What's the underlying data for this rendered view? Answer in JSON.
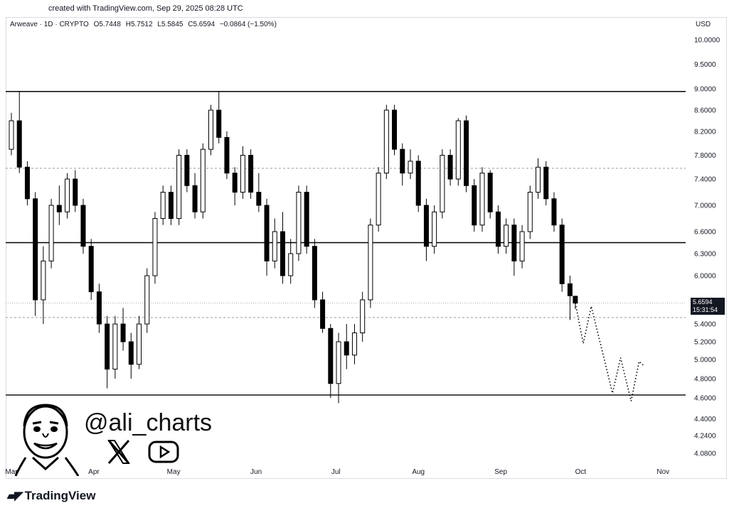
{
  "header": {
    "note": "created with TradingView.com, Sep 29, 2025 08:28 UTC"
  },
  "legend": {
    "symbol": "Arweave · 1D · CRYPTO",
    "open": "O5.7448",
    "high": "H5.7512",
    "low": "L5.5845",
    "close": "C5.6594",
    "change": "−0.0864 (−1.50%)"
  },
  "currency": "USD",
  "price_tag": {
    "price": "5.6594",
    "countdown": "15:31:54"
  },
  "overlay": {
    "handle": "@ali_charts",
    "x_icon": "x-logo-icon",
    "youtube_icon": "youtube-icon"
  },
  "brand": {
    "name": "TradingView"
  },
  "colors": {
    "up": "#ffffff",
    "down": "#000000",
    "line": "#000000",
    "grid": "#9a9a9a"
  },
  "chart_data": {
    "type": "candlestick",
    "y_ticks": [
      "10.0000",
      "9.5000",
      "9.0000",
      "8.6000",
      "8.2000",
      "7.8000",
      "7.4000",
      "7.0000",
      "6.6000",
      "6.3000",
      "6.0000",
      "5.4000",
      "5.2000",
      "5.0000",
      "4.8000",
      "4.6000",
      "4.4000",
      "4.2400",
      "4.0800"
    ],
    "x_ticks": [
      "Mar",
      "Apr",
      "May",
      "Jun",
      "Jul",
      "Aug",
      "Sep",
      "Oct",
      "Nov"
    ],
    "horizontal_lines": [
      {
        "price": 8.95,
        "style": "solid"
      },
      {
        "price": 7.58,
        "style": "dashed"
      },
      {
        "price": 6.45,
        "style": "solid"
      },
      {
        "price": 5.48,
        "style": "dashed"
      },
      {
        "price": 4.63,
        "style": "solid"
      }
    ],
    "close_line": {
      "price": 5.66,
      "style": "dotted"
    },
    "projection": [
      {
        "date": "2025-09-29",
        "price": 5.66
      },
      {
        "date": "2025-10-02",
        "price": 5.18
      },
      {
        "date": "2025-10-05",
        "price": 5.62
      },
      {
        "date": "2025-10-13",
        "price": 4.65
      },
      {
        "date": "2025-10-16",
        "price": 5.02
      },
      {
        "date": "2025-10-20",
        "price": 4.57
      },
      {
        "date": "2025-10-23",
        "price": 4.98
      },
      {
        "date": "2025-10-25",
        "price": 4.93
      }
    ],
    "candles": [
      {
        "date": "2025-03-01",
        "o": 7.9,
        "h": 8.55,
        "l": 7.8,
        "c": 8.4
      },
      {
        "date": "2025-03-04",
        "o": 8.4,
        "h": 8.95,
        "l": 7.5,
        "c": 7.6
      },
      {
        "date": "2025-03-07",
        "o": 7.6,
        "h": 7.7,
        "l": 7.0,
        "c": 7.1
      },
      {
        "date": "2025-03-10",
        "o": 7.1,
        "h": 7.2,
        "l": 5.5,
        "c": 5.7
      },
      {
        "date": "2025-03-13",
        "o": 5.7,
        "h": 6.4,
        "l": 5.4,
        "c": 6.2
      },
      {
        "date": "2025-03-16",
        "o": 6.2,
        "h": 7.1,
        "l": 6.1,
        "c": 7.0
      },
      {
        "date": "2025-03-19",
        "o": 7.0,
        "h": 7.3,
        "l": 6.7,
        "c": 6.9
      },
      {
        "date": "2025-03-22",
        "o": 6.9,
        "h": 7.5,
        "l": 6.8,
        "c": 7.4
      },
      {
        "date": "2025-03-25",
        "o": 7.4,
        "h": 7.55,
        "l": 6.9,
        "c": 7.0
      },
      {
        "date": "2025-03-28",
        "o": 7.0,
        "h": 7.1,
        "l": 6.3,
        "c": 6.4
      },
      {
        "date": "2025-03-31",
        "o": 6.4,
        "h": 6.5,
        "l": 5.7,
        "c": 5.8
      },
      {
        "date": "2025-04-03",
        "o": 5.8,
        "h": 5.9,
        "l": 5.3,
        "c": 5.4
      },
      {
        "date": "2025-04-06",
        "o": 5.4,
        "h": 5.5,
        "l": 4.7,
        "c": 4.9
      },
      {
        "date": "2025-04-09",
        "o": 4.9,
        "h": 5.5,
        "l": 4.8,
        "c": 5.4
      },
      {
        "date": "2025-04-12",
        "o": 5.4,
        "h": 5.6,
        "l": 5.1,
        "c": 5.2
      },
      {
        "date": "2025-04-15",
        "o": 5.2,
        "h": 5.3,
        "l": 4.8,
        "c": 4.95
      },
      {
        "date": "2025-04-18",
        "o": 4.95,
        "h": 5.5,
        "l": 4.9,
        "c": 5.4
      },
      {
        "date": "2025-04-21",
        "o": 5.4,
        "h": 6.1,
        "l": 5.3,
        "c": 6.0
      },
      {
        "date": "2025-04-24",
        "o": 6.0,
        "h": 6.9,
        "l": 5.9,
        "c": 6.8
      },
      {
        "date": "2025-04-27",
        "o": 6.8,
        "h": 7.3,
        "l": 6.7,
        "c": 7.2
      },
      {
        "date": "2025-04-30",
        "o": 7.2,
        "h": 7.3,
        "l": 6.7,
        "c": 6.8
      },
      {
        "date": "2025-05-03",
        "o": 6.8,
        "h": 7.9,
        "l": 6.7,
        "c": 7.8
      },
      {
        "date": "2025-05-06",
        "o": 7.8,
        "h": 7.9,
        "l": 7.2,
        "c": 7.3
      },
      {
        "date": "2025-05-09",
        "o": 7.3,
        "h": 7.5,
        "l": 6.8,
        "c": 6.9
      },
      {
        "date": "2025-05-12",
        "o": 6.9,
        "h": 8.0,
        "l": 6.8,
        "c": 7.9
      },
      {
        "date": "2025-05-15",
        "o": 7.9,
        "h": 8.7,
        "l": 7.8,
        "c": 8.6
      },
      {
        "date": "2025-05-18",
        "o": 8.6,
        "h": 8.95,
        "l": 8.0,
        "c": 8.1
      },
      {
        "date": "2025-05-21",
        "o": 8.1,
        "h": 8.2,
        "l": 7.4,
        "c": 7.5
      },
      {
        "date": "2025-05-24",
        "o": 7.5,
        "h": 7.6,
        "l": 7.0,
        "c": 7.2
      },
      {
        "date": "2025-05-27",
        "o": 7.2,
        "h": 7.95,
        "l": 7.1,
        "c": 7.8
      },
      {
        "date": "2025-05-30",
        "o": 7.8,
        "h": 7.9,
        "l": 7.1,
        "c": 7.2
      },
      {
        "date": "2025-06-02",
        "o": 7.2,
        "h": 7.5,
        "l": 6.9,
        "c": 7.0
      },
      {
        "date": "2025-06-05",
        "o": 7.0,
        "h": 7.1,
        "l": 6.0,
        "c": 6.2
      },
      {
        "date": "2025-06-08",
        "o": 6.2,
        "h": 6.8,
        "l": 6.1,
        "c": 6.6
      },
      {
        "date": "2025-06-11",
        "o": 6.6,
        "h": 6.9,
        "l": 5.9,
        "c": 6.0
      },
      {
        "date": "2025-06-14",
        "o": 6.0,
        "h": 6.5,
        "l": 5.9,
        "c": 6.3
      },
      {
        "date": "2025-06-17",
        "o": 6.3,
        "h": 7.3,
        "l": 6.2,
        "c": 7.2
      },
      {
        "date": "2025-06-20",
        "o": 7.2,
        "h": 7.3,
        "l": 6.3,
        "c": 6.4
      },
      {
        "date": "2025-06-23",
        "o": 6.4,
        "h": 6.5,
        "l": 5.6,
        "c": 5.7
      },
      {
        "date": "2025-06-26",
        "o": 5.7,
        "h": 5.8,
        "l": 5.3,
        "c": 5.35
      },
      {
        "date": "2025-06-29",
        "o": 5.35,
        "h": 5.4,
        "l": 4.6,
        "c": 4.75
      },
      {
        "date": "2025-07-02",
        "o": 4.75,
        "h": 5.3,
        "l": 4.55,
        "c": 5.2
      },
      {
        "date": "2025-07-05",
        "o": 5.2,
        "h": 5.4,
        "l": 4.9,
        "c": 5.05
      },
      {
        "date": "2025-07-08",
        "o": 5.05,
        "h": 5.4,
        "l": 4.95,
        "c": 5.3
      },
      {
        "date": "2025-07-11",
        "o": 5.3,
        "h": 5.8,
        "l": 5.2,
        "c": 5.7
      },
      {
        "date": "2025-07-14",
        "o": 5.7,
        "h": 6.8,
        "l": 5.6,
        "c": 6.7
      },
      {
        "date": "2025-07-17",
        "o": 6.7,
        "h": 7.6,
        "l": 6.6,
        "c": 7.5
      },
      {
        "date": "2025-07-20",
        "o": 7.5,
        "h": 8.7,
        "l": 7.4,
        "c": 8.6
      },
      {
        "date": "2025-07-23",
        "o": 8.6,
        "h": 8.7,
        "l": 7.8,
        "c": 7.9
      },
      {
        "date": "2025-07-26",
        "o": 7.9,
        "h": 8.0,
        "l": 7.3,
        "c": 7.5
      },
      {
        "date": "2025-07-29",
        "o": 7.5,
        "h": 7.9,
        "l": 7.4,
        "c": 7.7
      },
      {
        "date": "2025-08-01",
        "o": 7.7,
        "h": 7.8,
        "l": 6.9,
        "c": 7.0
      },
      {
        "date": "2025-08-04",
        "o": 7.0,
        "h": 7.1,
        "l": 6.2,
        "c": 6.4
      },
      {
        "date": "2025-08-07",
        "o": 6.4,
        "h": 7.0,
        "l": 6.3,
        "c": 6.9
      },
      {
        "date": "2025-08-10",
        "o": 6.9,
        "h": 7.9,
        "l": 6.8,
        "c": 7.8
      },
      {
        "date": "2025-08-13",
        "o": 7.8,
        "h": 7.9,
        "l": 7.3,
        "c": 7.4
      },
      {
        "date": "2025-08-16",
        "o": 7.4,
        "h": 8.45,
        "l": 7.3,
        "c": 8.4
      },
      {
        "date": "2025-08-19",
        "o": 8.4,
        "h": 8.5,
        "l": 7.2,
        "c": 7.3
      },
      {
        "date": "2025-08-22",
        "o": 7.3,
        "h": 7.4,
        "l": 6.6,
        "c": 6.7
      },
      {
        "date": "2025-08-25",
        "o": 6.7,
        "h": 7.6,
        "l": 6.6,
        "c": 7.5
      },
      {
        "date": "2025-08-28",
        "o": 7.5,
        "h": 7.55,
        "l": 6.8,
        "c": 6.9
      },
      {
        "date": "2025-08-31",
        "o": 6.9,
        "h": 7.0,
        "l": 6.3,
        "c": 6.4
      },
      {
        "date": "2025-09-03",
        "o": 6.4,
        "h": 6.8,
        "l": 6.3,
        "c": 6.7
      },
      {
        "date": "2025-09-06",
        "o": 6.7,
        "h": 6.8,
        "l": 6.0,
        "c": 6.2
      },
      {
        "date": "2025-09-09",
        "o": 6.2,
        "h": 6.7,
        "l": 6.1,
        "c": 6.6
      },
      {
        "date": "2025-09-12",
        "o": 6.6,
        "h": 7.3,
        "l": 6.5,
        "c": 7.2
      },
      {
        "date": "2025-09-15",
        "o": 7.2,
        "h": 7.75,
        "l": 7.1,
        "c": 7.6
      },
      {
        "date": "2025-09-18",
        "o": 7.6,
        "h": 7.7,
        "l": 7.0,
        "c": 7.1
      },
      {
        "date": "2025-09-21",
        "o": 7.1,
        "h": 7.2,
        "l": 6.6,
        "c": 6.7
      },
      {
        "date": "2025-09-24",
        "o": 6.7,
        "h": 6.8,
        "l": 5.8,
        "c": 5.9
      },
      {
        "date": "2025-09-27",
        "o": 5.9,
        "h": 6.0,
        "l": 5.45,
        "c": 5.75
      },
      {
        "date": "2025-09-29",
        "o": 5.7448,
        "h": 5.7512,
        "l": 5.5845,
        "c": 5.6594
      }
    ]
  }
}
